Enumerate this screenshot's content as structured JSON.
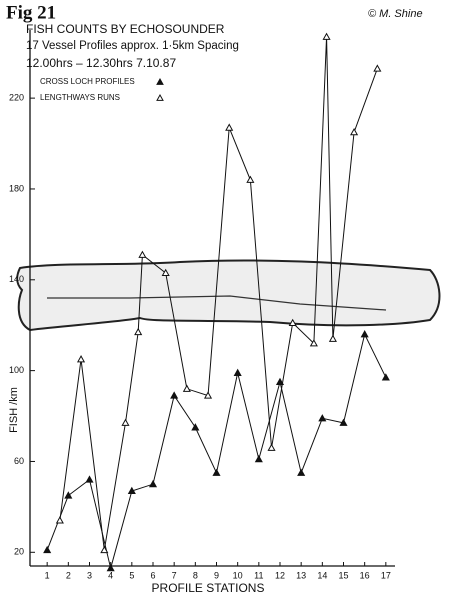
{
  "figure_label": "Fig 21",
  "signature": "© M. Shine",
  "chart_data": {
    "type": "line",
    "title": "FISH COUNTS BY ECHOSOUNDER",
    "subtitle": "17 Vessel Profiles approx. 1·5km Spacing",
    "time_note": "12.00hrs – 12.30hrs   7.10.87",
    "x_label": "PROFILE STATIONS",
    "y_label": "FISH /km",
    "xlim": [
      0,
      18
    ],
    "xticks": [
      1,
      2,
      3,
      4,
      5,
      6,
      7,
      8,
      9,
      10,
      11,
      12,
      13,
      14,
      15,
      16,
      17
    ],
    "ylim": [
      10,
      250
    ],
    "yticks": [
      20,
      60,
      100,
      140,
      180,
      220
    ],
    "series": [
      {
        "name": "CROSS LOCH PROFILES",
        "color": "#111111",
        "marker": "filled",
        "x": [
          1,
          2,
          3,
          4,
          5,
          6,
          7,
          8,
          9,
          10,
          11,
          12,
          13,
          14,
          15,
          16,
          17
        ],
        "values": [
          21,
          45,
          52,
          13,
          47,
          50,
          89,
          75,
          55,
          99,
          61,
          95,
          55,
          79,
          77,
          116,
          97
        ]
      },
      {
        "name": "LENGTHWAYS RUNS",
        "color": "#111111",
        "marker": "open",
        "x": [
          1.6,
          2.6,
          3.7,
          4.7,
          5.3,
          5.5,
          6.6,
          7.6,
          8.6,
          9.6,
          10.6,
          11.6,
          12.6,
          13.6,
          14.2,
          14.5,
          15.5,
          16.6
        ],
        "values": [
          34,
          105,
          21,
          77,
          117,
          151,
          143,
          92,
          89,
          207,
          184,
          66,
          121,
          112,
          247,
          114,
          205,
          233
        ]
      }
    ]
  }
}
